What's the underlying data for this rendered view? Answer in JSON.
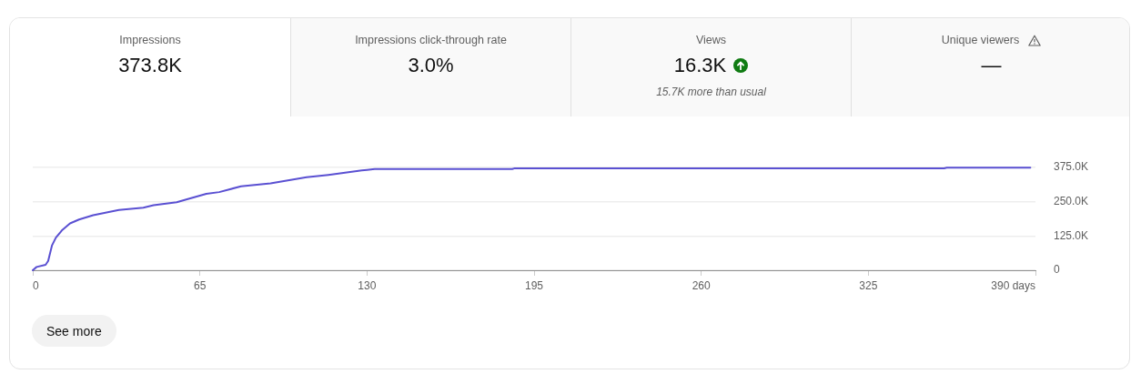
{
  "chart_data": [
    {
      "type": "other",
      "title": "Impressions",
      "annotations": [
        "373.8K"
      ]
    },
    {
      "type": "other",
      "title": "Impressions click-through rate",
      "annotations": [
        "3.0%"
      ]
    },
    {
      "type": "other",
      "title": "Views",
      "annotations": [
        "16.3K",
        "15.7K more than usual"
      ]
    },
    {
      "type": "other",
      "title": "Unique viewers",
      "annotations": [
        "—"
      ]
    },
    {
      "type": "line",
      "x": [
        0,
        1.5,
        5,
        6,
        7.5,
        9,
        11.5,
        14.5,
        18,
        23.5,
        33.5,
        43,
        47,
        56,
        60,
        67.5,
        72.5,
        81,
        92.5,
        106.5,
        115,
        128,
        130,
        133,
        186.5,
        187.5,
        354.5,
        355.5,
        388
      ],
      "values": [
        0,
        12000,
        20000,
        34000,
        91000,
        119000,
        147000,
        171000,
        185000,
        201000,
        220000,
        228000,
        237000,
        248000,
        259000,
        279000,
        285000,
        306000,
        317000,
        339000,
        348000,
        364000,
        366000,
        369000,
        369000,
        372000,
        372000,
        374000,
        374000
      ],
      "color": "#5a50d2",
      "xlim": [
        0,
        390
      ],
      "xticks": [
        0,
        65,
        130,
        195,
        260,
        325,
        {
          "value": 390,
          "label": "390 days"
        }
      ],
      "ylim": [
        0,
        375000
      ],
      "yticks": [
        0,
        {
          "value": 125000,
          "label": "125.0K"
        },
        {
          "value": 250000,
          "label": "250.0K"
        },
        {
          "value": 375000,
          "label": "375.0K"
        }
      ],
      "grid": "y",
      "line_style": "solid",
      "annotations": [
        "See more"
      ]
    }
  ]
}
